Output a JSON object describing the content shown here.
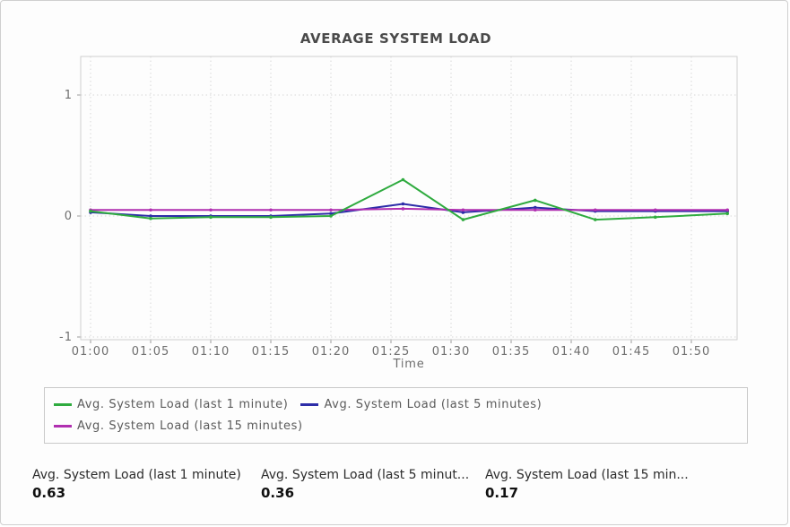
{
  "accent_colors": {
    "green": "#2fab3f",
    "blue": "#2d2da8",
    "magenta": "#b02fb0",
    "grid": "#d7d7d7",
    "plot_border": "#cfcfcf",
    "axis_text": "#6e6e6e"
  },
  "chart_data": {
    "type": "line",
    "title": "AVERAGE SYSTEM LOAD",
    "xlabel": "Time",
    "ylabel": "",
    "x_tick_labels": [
      "01:00",
      "01:05",
      "01:10",
      "01:15",
      "01:20",
      "01:25",
      "01:30",
      "01:35",
      "01:40",
      "01:45",
      "01:50"
    ],
    "y_ticks": [
      1,
      0,
      -1
    ],
    "y_tick_labels": [
      "1",
      "0",
      "-1"
    ],
    "ylim": [
      -1.02,
      1.32
    ],
    "grid": true,
    "legend_position": "bottom",
    "x_times": [
      "01:00",
      "01:05",
      "01:10",
      "01:15",
      "01:20",
      "01:26",
      "01:31",
      "01:37",
      "01:42",
      "01:47",
      "01:53"
    ],
    "series": [
      {
        "name": "Avg. System Load (last 1 minute)",
        "color": "#2fab3f",
        "values": [
          0.04,
          -0.02,
          -0.01,
          -0.01,
          0.0,
          0.3,
          -0.03,
          0.13,
          -0.03,
          -0.01,
          0.02
        ]
      },
      {
        "name": "Avg. System Load (last 5 minutes)",
        "color": "#2d2da8",
        "values": [
          0.03,
          0.0,
          0.0,
          0.0,
          0.02,
          0.1,
          0.03,
          0.07,
          0.04,
          0.04,
          0.04
        ]
      },
      {
        "name": "Avg. System Load (last 15 minutes)",
        "color": "#b02fb0",
        "values": [
          0.05,
          0.05,
          0.05,
          0.05,
          0.05,
          0.06,
          0.05,
          0.05,
          0.05,
          0.05,
          0.05
        ]
      }
    ]
  },
  "stats": [
    {
      "label": "Avg. System Load (last 1 minute)",
      "value": "0.63"
    },
    {
      "label": "Avg. System Load (last 5 minut...",
      "value": "0.36"
    },
    {
      "label": "Avg. System Load (last 15 min...",
      "value": "0.17"
    }
  ]
}
